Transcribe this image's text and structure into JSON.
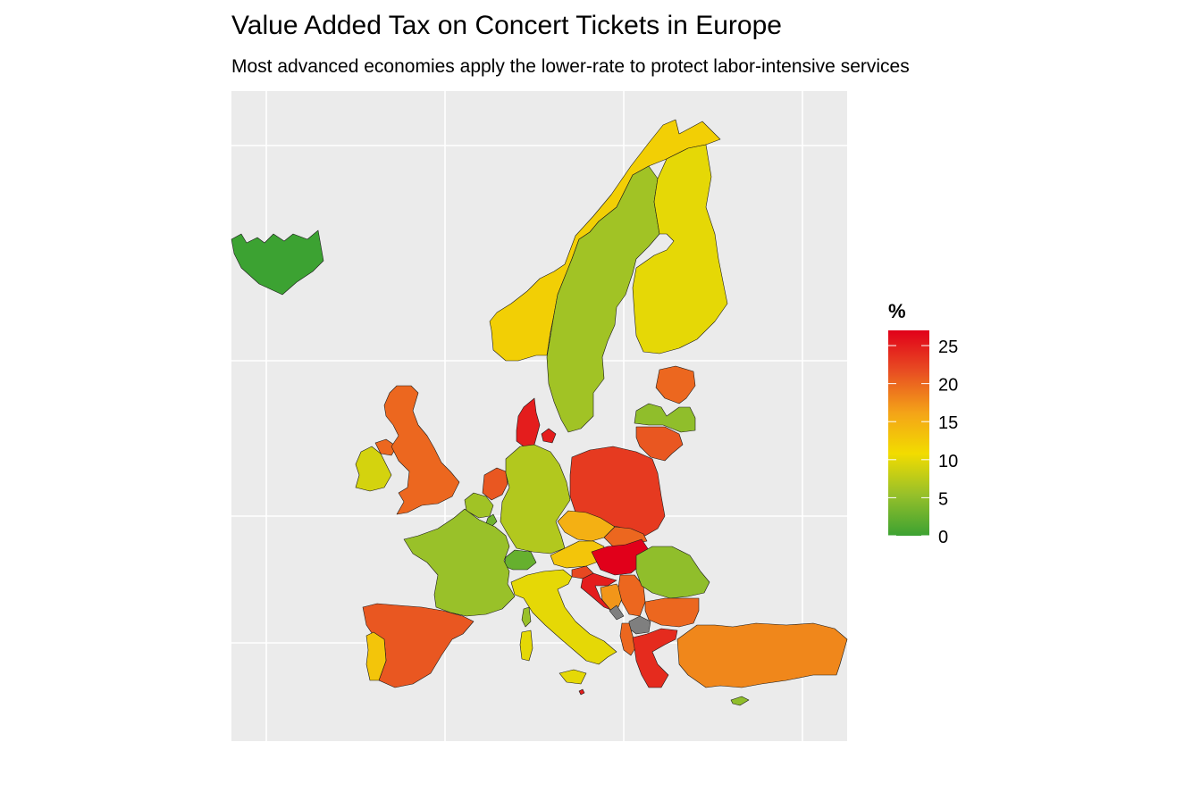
{
  "title": "Value Added Tax on Concert Tickets in Europe",
  "subtitle": "Most advanced economies apply the lower-rate to protect labor-intensive services",
  "legend": {
    "title": "%",
    "ticks": [
      0,
      5,
      10,
      15,
      20,
      25
    ],
    "range": [
      0,
      27
    ],
    "gradient": [
      "#3ca232",
      "#97c02a",
      "#f2dc00",
      "#f4a318",
      "#e84e22",
      "#e1001a"
    ]
  },
  "colors": {
    "panel_background": "#ebebeb",
    "grid": "#ffffff",
    "missing": "#7f7f7f",
    "border": "#1a1a1a"
  },
  "map_data": {
    "type": "choropleth",
    "countries": [
      {
        "name": "Iceland",
        "vat": 0
      },
      {
        "name": "Norway",
        "vat": 12
      },
      {
        "name": "Sweden",
        "vat": 6
      },
      {
        "name": "Finland",
        "vat": 10
      },
      {
        "name": "Estonia",
        "vat": 20
      },
      {
        "name": "Latvia",
        "vat": 5
      },
      {
        "name": "Lithuania",
        "vat": 21
      },
      {
        "name": "Denmark",
        "vat": 25
      },
      {
        "name": "Ireland",
        "vat": 9
      },
      {
        "name": "Northern Ireland",
        "vat": 20
      },
      {
        "name": "United Kingdom",
        "vat": 20
      },
      {
        "name": "Netherlands",
        "vat": 21
      },
      {
        "name": "Belgium",
        "vat": 6
      },
      {
        "name": "Luxembourg",
        "vat": 3
      },
      {
        "name": "Germany",
        "vat": 7
      },
      {
        "name": "Poland",
        "vat": 23
      },
      {
        "name": "Czechia",
        "vat": 15
      },
      {
        "name": "Slovakia",
        "vat": 20
      },
      {
        "name": "Austria",
        "vat": 13
      },
      {
        "name": "Switzerland",
        "vat": 2.5
      },
      {
        "name": "Slovenia",
        "vat": 22
      },
      {
        "name": "Hungary",
        "vat": 27
      },
      {
        "name": "Croatia",
        "vat": 25
      },
      {
        "name": "Bosnia and Herzegovina",
        "vat": 17
      },
      {
        "name": "Serbia",
        "vat": 20
      },
      {
        "name": "Montenegro",
        "vat": null
      },
      {
        "name": "Kosovo",
        "vat": null
      },
      {
        "name": "North Macedonia",
        "vat": null
      },
      {
        "name": "Albania",
        "vat": 20
      },
      {
        "name": "Romania",
        "vat": 5
      },
      {
        "name": "Bulgaria",
        "vat": 20
      },
      {
        "name": "Greece",
        "vat": 24
      },
      {
        "name": "Turkey",
        "vat": 18
      },
      {
        "name": "Cyprus",
        "vat": 5
      },
      {
        "name": "Malta",
        "vat": 25
      },
      {
        "name": "France",
        "vat": 5.5
      },
      {
        "name": "Spain",
        "vat": 21
      },
      {
        "name": "Portugal",
        "vat": 13
      },
      {
        "name": "Italy",
        "vat": 10
      },
      {
        "name": "Sardinia",
        "vat": 10
      },
      {
        "name": "Sicily",
        "vat": 10
      },
      {
        "name": "Corsica",
        "vat": 5.5
      }
    ]
  }
}
